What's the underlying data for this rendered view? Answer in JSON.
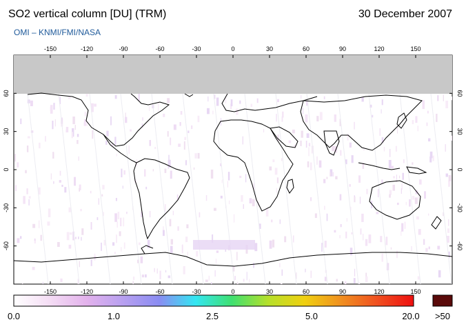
{
  "header": {
    "title": "SO2 vertical column [DU] (TRM)",
    "date": "30 December 2007",
    "credit": "OMI  –  KNMI/FMI/NASA"
  },
  "map": {
    "lon_ticks": [
      -150,
      -120,
      -90,
      -60,
      -30,
      0,
      30,
      60,
      90,
      120,
      150
    ],
    "lat_ticks": [
      60,
      30,
      0,
      -30,
      -60
    ],
    "lon_range": [
      -180,
      180
    ],
    "lat_range": [
      -90,
      90
    ],
    "no_data_color": "#c8c8c8",
    "no_data_regions": [
      "north of ~57N"
    ]
  },
  "colorbar": {
    "labels": [
      "0.0",
      "1.0",
      "2.5",
      "5.0",
      "20.0"
    ],
    "overflow_label": ">50",
    "overflow_color": "#5a0a0a",
    "stops": [
      "#ffffff",
      "#f4dcf4",
      "#e3b2ec",
      "#b8a0f0",
      "#8a8cf2",
      "#33e6f2",
      "#3fe070",
      "#b6e02a",
      "#f0d010",
      "#f09020",
      "#f05020",
      "#ee1010"
    ]
  }
}
